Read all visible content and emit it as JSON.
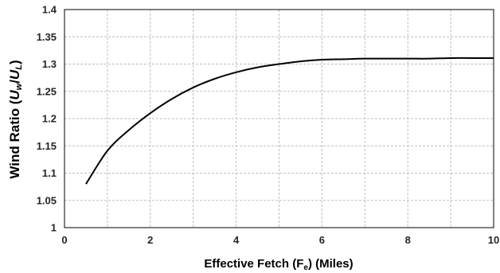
{
  "chart_data": {
    "type": "line",
    "title": "",
    "xlabel": {
      "main": "Effective Fetch (F",
      "sub": "e",
      "tail": ") (Miles)"
    },
    "ylabel": {
      "prefix": "Wind Ratio (",
      "u1": "U",
      "s1": "w",
      "slash": "/",
      "u2": "U",
      "s2": "L",
      "suffix": ")"
    },
    "xlim": [
      0,
      10
    ],
    "ylim": [
      1,
      1.4
    ],
    "xticks": [
      0,
      2,
      4,
      6,
      8,
      10
    ],
    "xtick_labels": [
      "0",
      "2",
      "4",
      "6",
      "8",
      "10"
    ],
    "yticks": [
      1,
      1.05,
      1.1,
      1.15,
      1.2,
      1.25,
      1.3,
      1.35,
      1.4
    ],
    "ytick_labels": [
      "1",
      "1.05",
      "1.1",
      "1.15",
      "1.2",
      "1.25",
      "1.3",
      "1.35",
      "1.4"
    ],
    "x_minor_grid": [
      1,
      3,
      5,
      7,
      9
    ],
    "grid": true,
    "legend": "none",
    "line_color": "#000000",
    "grid_color": "#bfbfbf",
    "series": [
      {
        "x": [
          0.5,
          1,
          1.5,
          2,
          2.5,
          3,
          3.5,
          4,
          4.5,
          5,
          5.5,
          6,
          6.5,
          7,
          7.5,
          8,
          8.5,
          9,
          9.5,
          10
        ],
        "values": [
          1.08,
          1.141,
          1.179,
          1.21,
          1.236,
          1.257,
          1.273,
          1.285,
          1.294,
          1.3,
          1.305,
          1.308,
          1.309,
          1.31,
          1.31,
          1.31,
          1.31,
          1.311,
          1.311,
          1.311
        ]
      }
    ]
  }
}
